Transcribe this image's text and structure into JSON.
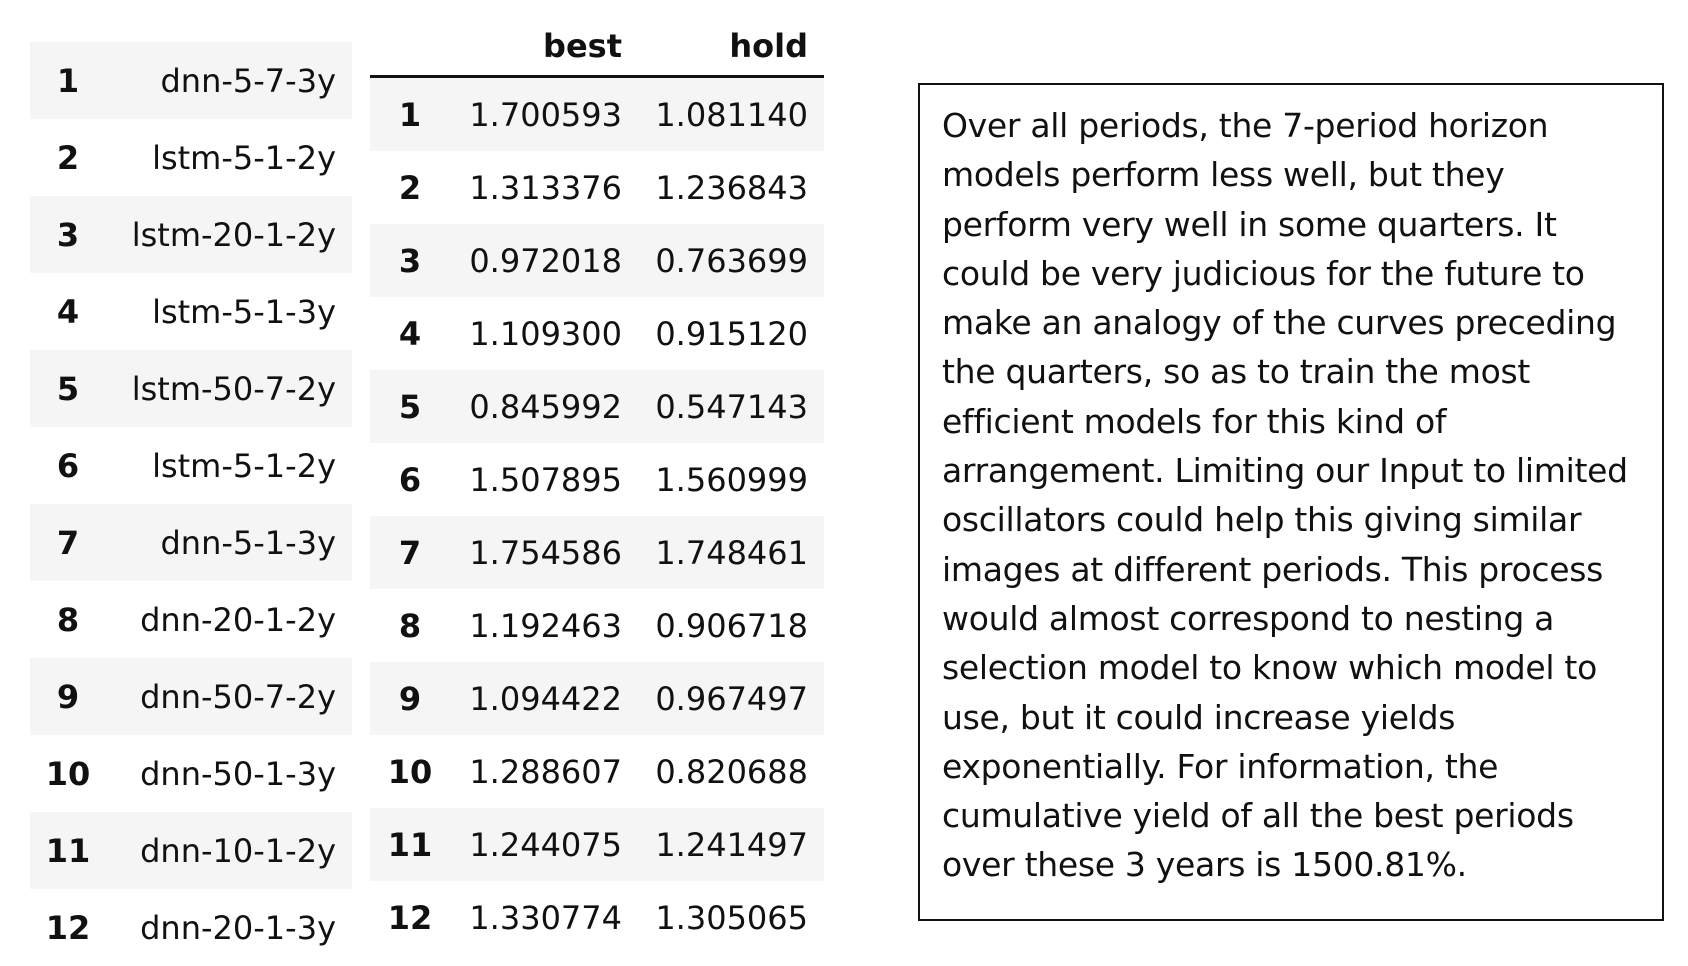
{
  "models_table": {
    "rows": [
      {
        "idx": "1",
        "name": "dnn-5-7-3y"
      },
      {
        "idx": "2",
        "name": "lstm-5-1-2y"
      },
      {
        "idx": "3",
        "name": "lstm-20-1-2y"
      },
      {
        "idx": "4",
        "name": "lstm-5-1-3y"
      },
      {
        "idx": "5",
        "name": "lstm-50-7-2y"
      },
      {
        "idx": "6",
        "name": "lstm-5-1-2y"
      },
      {
        "idx": "7",
        "name": "dnn-5-1-3y"
      },
      {
        "idx": "8",
        "name": "dnn-20-1-2y"
      },
      {
        "idx": "9",
        "name": "dnn-50-7-2y"
      },
      {
        "idx": "10",
        "name": "dnn-50-1-3y"
      },
      {
        "idx": "11",
        "name": "dnn-10-1-2y"
      },
      {
        "idx": "12",
        "name": "dnn-20-1-3y"
      }
    ]
  },
  "scores_table": {
    "columns": [
      "best",
      "hold"
    ],
    "rows": [
      {
        "idx": "1",
        "best": "1.700593",
        "hold": "1.081140"
      },
      {
        "idx": "2",
        "best": "1.313376",
        "hold": "1.236843"
      },
      {
        "idx": "3",
        "best": "0.972018",
        "hold": "0.763699"
      },
      {
        "idx": "4",
        "best": "1.109300",
        "hold": "0.915120"
      },
      {
        "idx": "5",
        "best": "0.845992",
        "hold": "0.547143"
      },
      {
        "idx": "6",
        "best": "1.507895",
        "hold": "1.560999"
      },
      {
        "idx": "7",
        "best": "1.754586",
        "hold": "1.748461"
      },
      {
        "idx": "8",
        "best": "1.192463",
        "hold": "0.906718"
      },
      {
        "idx": "9",
        "best": "1.094422",
        "hold": "0.967497"
      },
      {
        "idx": "10",
        "best": "1.288607",
        "hold": "0.820688"
      },
      {
        "idx": "11",
        "best": "1.244075",
        "hold": "1.241497"
      },
      {
        "idx": "12",
        "best": "1.330774",
        "hold": "1.305065"
      }
    ]
  },
  "note": {
    "text": "Over all periods, the 7-period horizon models perform less well, but they perform very well in some quarters. It could be very judicious for the future to make an analogy of the curves preceding the quarters, so as to train the most efficient models for this kind of arrangement. Limiting our Input to limited oscillators could help this giving similar images at different periods. This process would almost correspond to nesting a selection model to know which model to use, but it could increase yields exponentially. For information, the cumulative yield of all the best periods over these 3 years is 1500.81%."
  }
}
